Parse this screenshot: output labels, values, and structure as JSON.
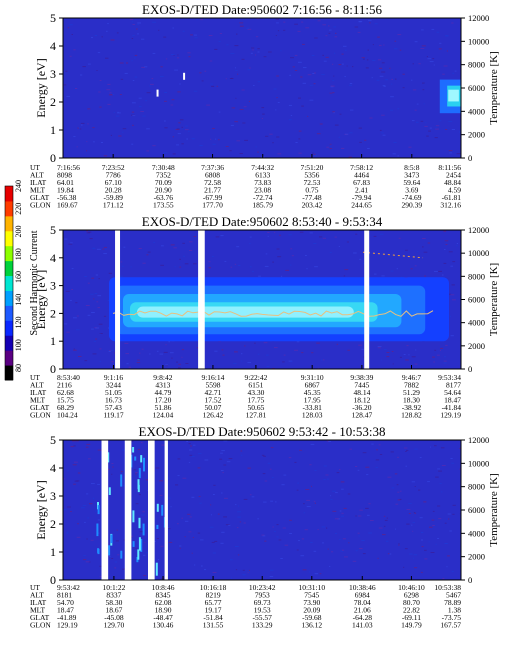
{
  "colorbar": {
    "label": "Second Harmonic Current",
    "ticks": [
      "80",
      "100",
      "120",
      "140",
      "160",
      "180",
      "200",
      "220",
      "240"
    ],
    "colors": [
      "#000000",
      "#5a0082",
      "#1400b4",
      "#0a28ff",
      "#1e5aff",
      "#00a0ff",
      "#00e6d2",
      "#00d23c",
      "#8cff00",
      "#ffff00",
      "#ffb400",
      "#ff3c00",
      "#e60000"
    ]
  },
  "chart_data": [
    {
      "type": "heatmap",
      "title": "EXOS-D/TED   Date:950602  7:16:56 - 8:11:56",
      "ylabel": "Energy [eV]",
      "y2label": "Temperature [K]",
      "ylim": [
        0,
        5
      ],
      "y_ticks": [
        "0",
        "1",
        "2",
        "3",
        "4",
        "5"
      ],
      "y2lim": [
        0,
        12000
      ],
      "y2_ticks": [
        "0",
        "2000",
        "4000",
        "6000",
        "8000",
        "10000",
        "12000"
      ],
      "table_row_labels": [
        "UT",
        "ALT",
        "ILAT",
        "MLT",
        "GLAT",
        "GLON"
      ],
      "table_columns": [
        [
          "7:16:56",
          "8098",
          "64.01",
          "19.84",
          "-56.38",
          "169.67"
        ],
        [
          "7:23:52",
          "7786",
          "67.10",
          "20.28",
          "-59.89",
          "171.12"
        ],
        [
          "7:30:48",
          "7352",
          "70.09",
          "20.90",
          "-63.76",
          "173.55"
        ],
        [
          "7:37:36",
          "6808",
          "72.58",
          "21.77",
          "-67.99",
          "177.70"
        ],
        [
          "7:44:32",
          "6133",
          "73.83",
          "23.08",
          "-72.74",
          "185.79"
        ],
        [
          "7:51:20",
          "5356",
          "72.53",
          "0.75",
          "-77.48",
          "203.42"
        ],
        [
          "7:58:12",
          "4464",
          "67.83",
          "2.41",
          "-79.94",
          "244.65"
        ],
        [
          "8:5:8",
          "3473",
          "59.64",
          "3.69",
          "-74.69",
          "290.39"
        ],
        [
          "8:11:56",
          "2454",
          "48.84",
          "4.59",
          "-61.81",
          "312.16"
        ]
      ],
      "features": [
        {
          "kind": "enhancement",
          "time_range": [
            "8:09:00",
            "8:11:56"
          ],
          "energy_range": [
            1.6,
            2.8
          ],
          "level": "high"
        },
        {
          "kind": "dot",
          "time": "7:30:00",
          "energy": 2.3
        },
        {
          "kind": "dot",
          "time": "7:33:40",
          "energy": 2.9
        }
      ]
    },
    {
      "type": "heatmap",
      "title": "EXOS-D/TED   Date:950602  8:53:40 - 9:53:34",
      "ylabel": "Energy [eV]",
      "y2label": "Temperature [K]",
      "ylim": [
        0,
        5
      ],
      "y_ticks": [
        "0",
        "1",
        "2",
        "3",
        "4",
        "5"
      ],
      "y2lim": [
        0,
        12000
      ],
      "y2_ticks": [
        "0",
        "2000",
        "4000",
        "6000",
        "8000",
        "10000",
        "12000"
      ],
      "table_row_labels": [
        "UT",
        "ALT",
        "ILAT",
        "MLT",
        "GLAT",
        "GLON"
      ],
      "table_columns": [
        [
          "8:53:40",
          "2116",
          "62.68",
          "15.75",
          "68.29",
          "104.24"
        ],
        [
          "9:1:16",
          "3244",
          "51.05",
          "16.73",
          "57.43",
          "119.17"
        ],
        [
          "9:8:42",
          "4313",
          "44.79",
          "17.20",
          "51.86",
          "124.04"
        ],
        [
          "9:16:14",
          "5598",
          "42.71",
          "17.52",
          "50.07",
          "126.42"
        ],
        [
          "9:22:42",
          "6151",
          "43.30",
          "17.75",
          "50.65",
          "127.81"
        ],
        [
          "9:31:10",
          "6867",
          "45.35",
          "17.95",
          "-33.81",
          "128.03"
        ],
        [
          "9:38:39",
          "7445",
          "48.14",
          "18.12",
          "-36.20",
          "128.47"
        ],
        [
          "9:46:7",
          "7882",
          "51.29",
          "18.30",
          "-38.92",
          "128.82"
        ],
        [
          "9:53:34",
          "8177",
          "54.64",
          "18.47",
          "-41.84",
          "129.19"
        ]
      ],
      "gaps": [
        [
          "9:01:30",
          "9:02:15"
        ],
        [
          "9:14:00",
          "9:15:00"
        ],
        [
          "9:39:00",
          "9:39:45"
        ]
      ],
      "band": {
        "energy_center": 2.0,
        "energy_range": [
          1.0,
          3.3
        ],
        "temperature_trace_K": 4800
      }
    },
    {
      "type": "heatmap",
      "title": "EXOS-D/TED   Date:950602  9:53:42 - 10:53:38",
      "ylabel": "Energy [eV]",
      "y2label": "Temperature [K]",
      "ylim": [
        0,
        5
      ],
      "y_ticks": [
        "0",
        "1",
        "2",
        "3",
        "4",
        "5"
      ],
      "y2lim": [
        0,
        12000
      ],
      "y2_ticks": [
        "0",
        "2000",
        "4000",
        "6000",
        "8000",
        "10000",
        "12000"
      ],
      "table_row_labels": [
        "UT",
        "ALT",
        "ILAT",
        "MLT",
        "GLAT",
        "GLON"
      ],
      "table_columns": [
        [
          "9:53:42",
          "8181",
          "54.70",
          "18.47",
          "-41.89",
          "129.19"
        ],
        [
          "10:1:22",
          "8337",
          "58.30",
          "18.67",
          "-45.08",
          "129.70"
        ],
        [
          "10:8:46",
          "8345",
          "62.08",
          "18.90",
          "-48.47",
          "130.46"
        ],
        [
          "10:16:18",
          "8219",
          "65.77",
          "19.17",
          "-51.84",
          "131.55"
        ],
        [
          "10:23:42",
          "7953",
          "69.73",
          "19.53",
          "-55.57",
          "133.29"
        ],
        [
          "10:31:10",
          "7545",
          "73.90",
          "20.09",
          "-59.68",
          "136.12"
        ],
        [
          "10:38:46",
          "6984",
          "78.04",
          "21.06",
          "-64.28",
          "141.03"
        ],
        [
          "10:46:10",
          "6298",
          "80.70",
          "22.82",
          "-69.11",
          "149.79"
        ],
        [
          "10:53:38",
          "5467",
          "78.89",
          "1.38",
          "-73.75",
          "167.57"
        ]
      ],
      "gaps": [
        [
          "9:59:30",
          "10:00:30"
        ],
        [
          "10:03:00",
          "10:04:00"
        ],
        [
          "10:06:30",
          "10:07:30"
        ],
        [
          "10:09:00",
          "10:09:30"
        ]
      ]
    }
  ]
}
